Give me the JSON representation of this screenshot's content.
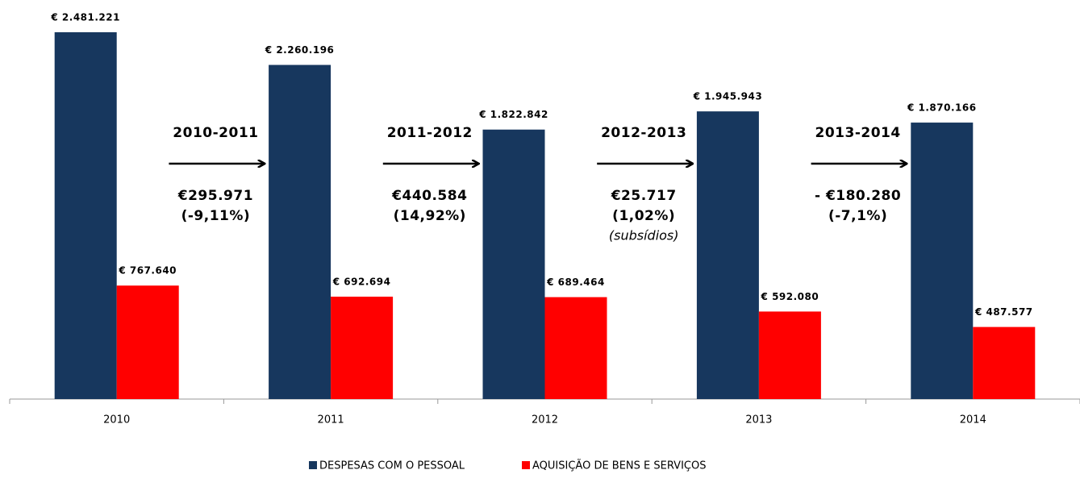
{
  "chart_data": {
    "type": "bar",
    "categories": [
      "2010",
      "2011",
      "2012",
      "2013",
      "2014"
    ],
    "series": [
      {
        "name": "DESPESAS COM O PESSOAL",
        "color": "#17375e",
        "values": [
          2481221,
          2260196,
          1822842,
          1945943,
          1870166
        ],
        "value_labels": [
          "€ 2.481.221",
          "€ 2.260.196",
          "€ 1.822.842",
          "€ 1.945.943",
          "€ 1.870.166"
        ]
      },
      {
        "name": "AQUISIÇÃO DE BENS E SERVIÇOS",
        "color": "#ff0000",
        "values": [
          767640,
          692694,
          689464,
          592080,
          487577
        ],
        "value_labels": [
          "€ 767.640",
          "€ 692.694",
          "€ 689.464",
          "€ 592.080",
          "€ 487.577"
        ]
      }
    ],
    "annotations": [
      {
        "period": "2010-2011",
        "amount": "€295.971",
        "change": "(-9,11%)"
      },
      {
        "period": "2011-2012",
        "amount": "€440.584",
        "change": "(14,92%)"
      },
      {
        "period": "2012-2013",
        "amount": "€25.717",
        "change": "(1,02%)",
        "note": "(subsídios)"
      },
      {
        "period": "2013-2014",
        "amount": "- €180.280",
        "change": "(-7,1%)"
      }
    ],
    "legend": "bottom"
  }
}
